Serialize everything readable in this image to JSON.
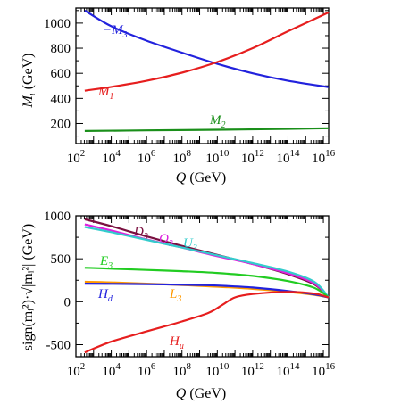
{
  "chart_data": [
    {
      "type": "line",
      "ylabel_main": "M",
      "ylabel_sub": "i",
      "ylabel_unit": " (GeV)",
      "xlabel_var": "Q",
      "xlabel_unit": " (GeV)",
      "xscale": "log",
      "xlim_exp": [
        2,
        16.3
      ],
      "ylim": [
        40,
        1120
      ],
      "xticks_exp": [
        2,
        4,
        6,
        8,
        10,
        12,
        14,
        16
      ],
      "yticks": [
        200,
        400,
        600,
        800,
        1000
      ],
      "series": [
        {
          "name": "M",
          "sub": "3",
          "prefix": "−",
          "color": "#2222dd",
          "x_exp": [
            2.5,
            4,
            6,
            8,
            10,
            12,
            14,
            16.3
          ],
          "y": [
            1100,
            975,
            860,
            765,
            675,
            600,
            540,
            490
          ]
        },
        {
          "name": "M",
          "sub": "1",
          "prefix": "",
          "color": "#e61e1e",
          "x_exp": [
            2.5,
            4,
            6,
            8,
            10,
            12,
            14,
            16.3
          ],
          "y": [
            462,
            492,
            540,
            605,
            690,
            800,
            935,
            1085
          ]
        },
        {
          "name": "M",
          "sub": "2",
          "prefix": "",
          "color": "#1a8f1a",
          "x_exp": [
            2.5,
            6,
            10,
            14,
            16.3
          ],
          "y": [
            140,
            145,
            150,
            157,
            162
          ]
        }
      ]
    },
    {
      "type": "line",
      "ylabel_main": "sign(m",
      "ylabel_full": "sign(mᵢ²)·√|mᵢ²| (GeV)",
      "xlabel_var": "Q",
      "xlabel_unit": " (GeV)",
      "xscale": "log",
      "xlim_exp": [
        2,
        16.3
      ],
      "ylim": [
        -640,
        1000
      ],
      "xticks_exp": [
        2,
        4,
        6,
        8,
        10,
        12,
        14,
        16
      ],
      "yticks": [
        -500,
        0,
        500,
        1000
      ],
      "series": [
        {
          "name": "D",
          "sub": "3",
          "color": "#7a1040",
          "x_exp": [
            2.5,
            4,
            6,
            8,
            10,
            12,
            14,
            15.5,
            16.3
          ],
          "y": [
            960,
            880,
            760,
            650,
            545,
            440,
            320,
            200,
            50
          ]
        },
        {
          "name": "Q",
          "sub": "3",
          "color": "#dd22dd",
          "x_exp": [
            2.5,
            4,
            6,
            8,
            10,
            12,
            14,
            15.5,
            16.3
          ],
          "y": [
            900,
            830,
            725,
            630,
            530,
            440,
            330,
            210,
            50
          ]
        },
        {
          "name": "U",
          "sub": "3",
          "color": "#33cccc",
          "x_exp": [
            2.5,
            4,
            6,
            8,
            10,
            12,
            14,
            15.5,
            16.3
          ],
          "y": [
            870,
            810,
            720,
            630,
            540,
            450,
            350,
            230,
            50
          ]
        },
        {
          "name": "E",
          "sub": "3",
          "color": "#22cc22",
          "x_exp": [
            2.5,
            4,
            6,
            8,
            10,
            12,
            14,
            15.5,
            16.3
          ],
          "y": [
            395,
            385,
            370,
            355,
            335,
            300,
            240,
            160,
            50
          ]
        },
        {
          "name": "L",
          "sub": "3",
          "color": "#ff9900",
          "x_exp": [
            2.5,
            4,
            6,
            8,
            10,
            12,
            14,
            15.5,
            16.3
          ],
          "y": [
            232,
            225,
            210,
            195,
            175,
            150,
            115,
            80,
            50
          ]
        },
        {
          "name": "H",
          "sub": "d",
          "color": "#2222dd",
          "x_exp": [
            2.5,
            4,
            6,
            8,
            10,
            12,
            14,
            15.5,
            16.3
          ],
          "y": [
            210,
            208,
            204,
            198,
            188,
            165,
            125,
            85,
            50
          ]
        },
        {
          "name": "H",
          "sub": "u",
          "color": "#e61e1e",
          "x_exp": [
            2.5,
            4,
            6,
            8,
            9.5,
            10.3,
            11,
            12,
            14,
            15.5,
            16.3
          ],
          "y": [
            -590,
            -465,
            -345,
            -230,
            -130,
            -35,
            50,
            90,
            115,
            95,
            50
          ]
        }
      ]
    }
  ]
}
